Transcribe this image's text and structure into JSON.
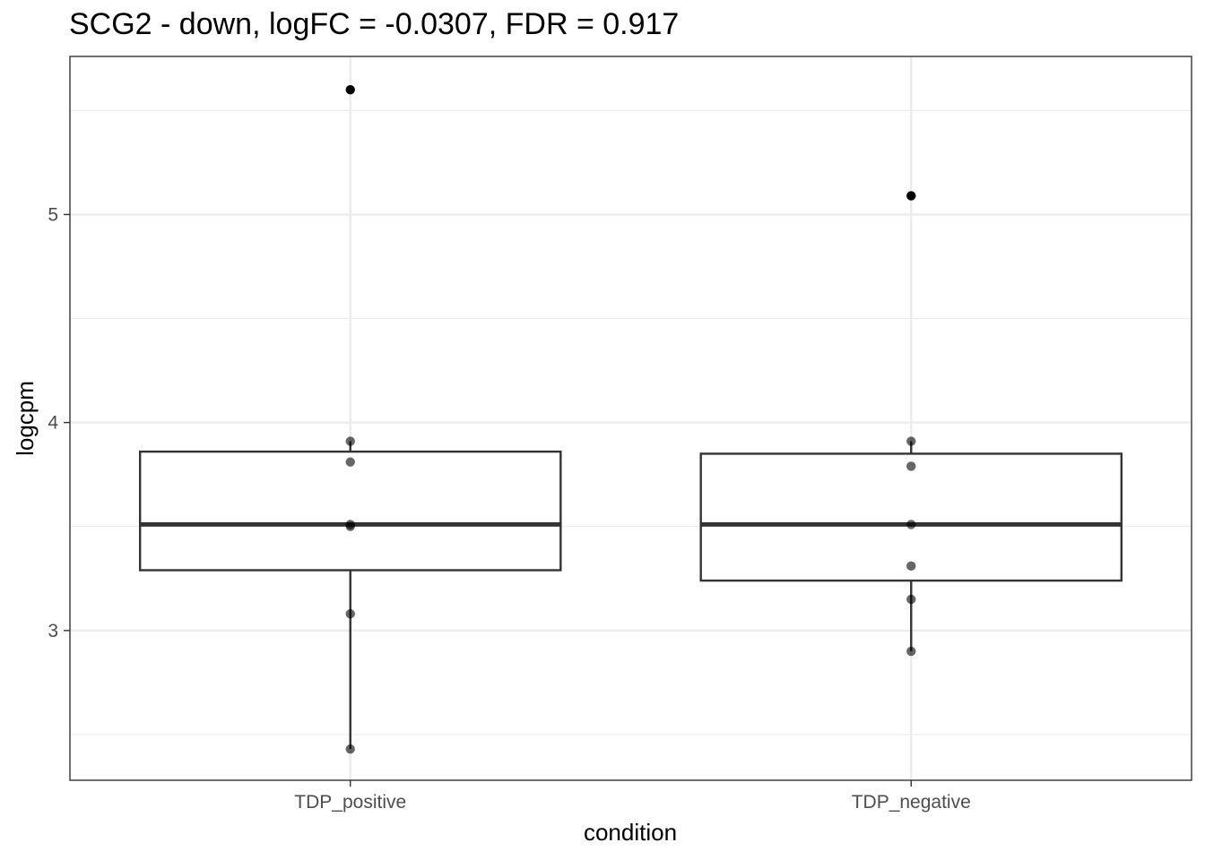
{
  "chart_data": {
    "type": "box",
    "title": "SCG2 - down, logFC = -0.0307, FDR = 0.917",
    "xlabel": "condition",
    "ylabel": "logcpm",
    "categories": [
      "TDP_positive",
      "TDP_negative"
    ],
    "ylim": [
      2.28,
      5.76
    ],
    "yticks": [
      3,
      4,
      5
    ],
    "grid": true,
    "theme": "bw",
    "boxes": [
      {
        "category": "TDP_positive",
        "q1": 3.29,
        "median": 3.51,
        "q3": 3.86,
        "whisker_low": 2.43,
        "whisker_high": 3.91,
        "outliers": [
          5.6
        ],
        "points": [
          3.91,
          3.81,
          3.51,
          3.5,
          3.08,
          2.43
        ]
      },
      {
        "category": "TDP_negative",
        "q1": 3.24,
        "median": 3.51,
        "q3": 3.85,
        "whisker_low": 2.9,
        "whisker_high": 3.91,
        "outliers": [
          5.09
        ],
        "points": [
          3.91,
          3.79,
          3.51,
          3.31,
          3.15,
          2.9
        ]
      }
    ],
    "colors": {
      "box": "#333333",
      "outlier": "#000000",
      "point": "#000000",
      "grid": "#ebebeb",
      "panel_border": "#333333"
    }
  }
}
